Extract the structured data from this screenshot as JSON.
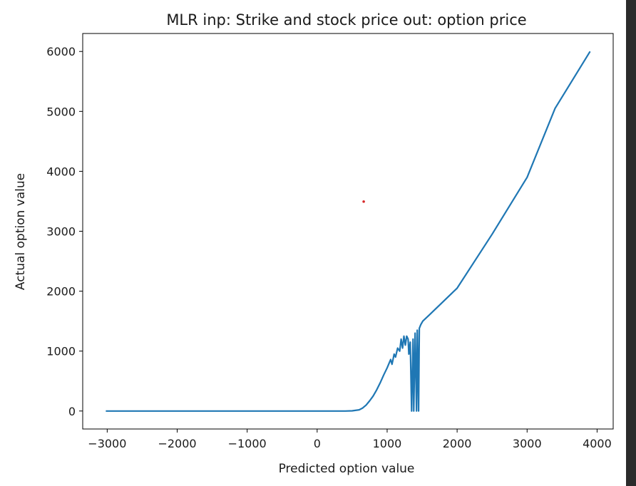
{
  "chart_data": {
    "type": "line",
    "title": "MLR inp: Strike and stock price out: option price",
    "xlabel": "Predicted option value",
    "ylabel": "Actual option value",
    "xlim": [
      -3350,
      4230
    ],
    "ylim": [
      -300,
      6300
    ],
    "x_ticks": [
      -3000,
      -2000,
      -1000,
      0,
      1000,
      2000,
      3000,
      4000
    ],
    "x_tick_labels": [
      "−3000",
      "−2000",
      "−1000",
      "0",
      "1000",
      "2000",
      "3000",
      "4000"
    ],
    "y_ticks": [
      0,
      1000,
      2000,
      3000,
      4000,
      5000,
      6000
    ],
    "y_tick_labels": [
      "0",
      "1000",
      "2000",
      "3000",
      "4000",
      "5000",
      "6000"
    ],
    "grid": false,
    "series": [
      {
        "color": "#1f77b4",
        "x": [
          -3020,
          -2000,
          -1000,
          0,
          400,
          500,
          600,
          650,
          700,
          750,
          800,
          850,
          900,
          950,
          1000,
          1050,
          1070,
          1100,
          1120,
          1150,
          1180,
          1200,
          1220,
          1240,
          1260,
          1280,
          1300,
          1310,
          1330,
          1350,
          1370,
          1380,
          1400,
          1420,
          1430,
          1450,
          1460,
          1480,
          1500,
          1510,
          1600,
          2000,
          2500,
          3000,
          3400,
          3900
        ],
        "y": [
          0,
          0,
          0,
          0,
          0,
          3,
          20,
          50,
          100,
          170,
          250,
          350,
          470,
          600,
          720,
          860,
          780,
          950,
          900,
          1050,
          1000,
          1200,
          1050,
          1250,
          1100,
          1250,
          1200,
          950,
          1150,
          0,
          1200,
          0,
          1300,
          0,
          1350,
          0,
          1380,
          1440,
          1480,
          1500,
          1600,
          2050,
          2950,
          3900,
          5050,
          6000
        ]
      }
    ],
    "annotations": [
      {
        "type": "marker",
        "x": 665,
        "y": 3495,
        "color": "#d62728"
      }
    ]
  }
}
